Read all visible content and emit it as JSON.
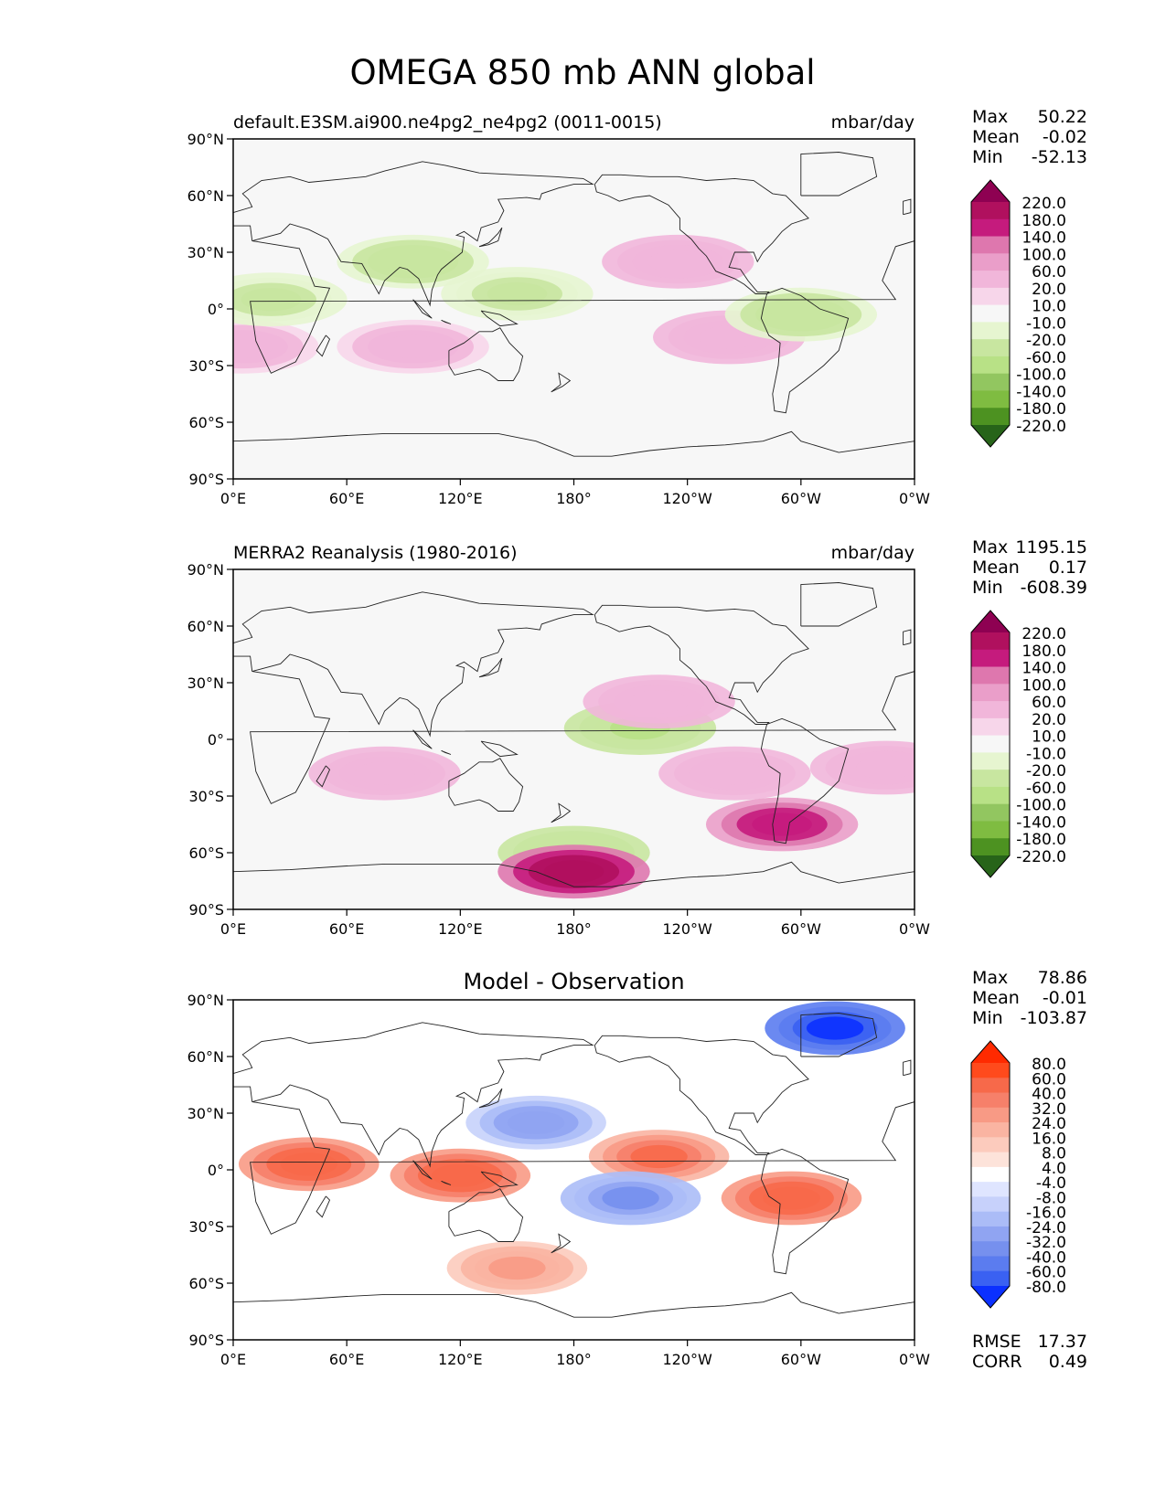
{
  "figure_title": "OMEGA 850 mb ANN global",
  "colors": {
    "background": "#f7f7f7",
    "coast": "#222222",
    "diff_low": "#0b30ff",
    "diff_high": "#ff2a00"
  },
  "chart_data": [
    {
      "type": "heatmap",
      "id": "model",
      "title": "default.E3SM.ai900.ne4pg2_ne4pg2 (0011-0015)",
      "units": "mbar/day",
      "stats": [
        {
          "label": "Max",
          "value": "50.22"
        },
        {
          "label": "Mean",
          "value": "-0.02"
        },
        {
          "label": "Min",
          "value": "-52.13"
        }
      ],
      "x_ticks": [
        "0°E",
        "60°E",
        "120°E",
        "180°",
        "120°W",
        "60°W",
        "0°W"
      ],
      "y_ticks": [
        "90°N",
        "60°N",
        "30°N",
        "0°",
        "30°S",
        "60°S",
        "90°S"
      ],
      "xlim": [
        0,
        360
      ],
      "ylim": [
        -90,
        90
      ],
      "colorbar": {
        "levels": [
          "220.0",
          "180.0",
          "140.0",
          "100.0",
          "60.0",
          "20.0",
          "10.0",
          "-10.0",
          "-20.0",
          "-60.0",
          "-100.0",
          "-140.0",
          "-180.0",
          "-220.0"
        ],
        "colors": [
          "#8e0152",
          "#b0105e",
          "#c51b7d",
          "#de77ae",
          "#ea9ec9",
          "#f1b6da",
          "#f7d6ea",
          "#f7f7f7",
          "#e6f5d0",
          "#c8e6a0",
          "#b8e186",
          "#92c660",
          "#7fbc41",
          "#4d9221",
          "#276419"
        ],
        "extend": "both"
      },
      "features": [
        {
          "name": "east-pacific-subsidence",
          "lon": 235,
          "lat": 25,
          "value": 45
        },
        {
          "name": "se-pacific-subsidence",
          "lon": 262,
          "lat": -15,
          "value": 45
        },
        {
          "name": "sw-indian-subsidence",
          "lon": 5,
          "lat": -20,
          "value": 30
        },
        {
          "name": "se-indian-subsidence",
          "lon": 95,
          "lat": -20,
          "value": 30
        },
        {
          "name": "warm-pool-ascent",
          "lon": 150,
          "lat": 8,
          "value": -25
        },
        {
          "name": "amazon-ascent",
          "lon": 300,
          "lat": -3,
          "value": -35
        },
        {
          "name": "africa-ascent",
          "lon": 20,
          "lat": 5,
          "value": -25
        },
        {
          "name": "himalaya-ascent",
          "lon": 95,
          "lat": 25,
          "value": -30
        }
      ]
    },
    {
      "type": "heatmap",
      "id": "obs",
      "title": "MERRA2 Reanalysis (1980-2016)",
      "units": "mbar/day",
      "stats": [
        {
          "label": "Max",
          "value": "1195.15"
        },
        {
          "label": "Mean",
          "value": "0.17"
        },
        {
          "label": "Min",
          "value": "-608.39"
        }
      ],
      "x_ticks": [
        "0°E",
        "60°E",
        "120°E",
        "180°",
        "120°W",
        "60°W",
        "0°W"
      ],
      "y_ticks": [
        "90°N",
        "60°N",
        "30°N",
        "0°",
        "30°S",
        "60°S",
        "90°S"
      ],
      "xlim": [
        0,
        360
      ],
      "ylim": [
        -90,
        90
      ],
      "colorbar": {
        "levels": [
          "220.0",
          "180.0",
          "140.0",
          "100.0",
          "60.0",
          "20.0",
          "10.0",
          "-10.0",
          "-20.0",
          "-60.0",
          "-100.0",
          "-140.0",
          "-180.0",
          "-220.0"
        ],
        "colors": [
          "#8e0152",
          "#b0105e",
          "#c51b7d",
          "#de77ae",
          "#ea9ec9",
          "#f1b6da",
          "#f7d6ea",
          "#f7f7f7",
          "#e6f5d0",
          "#c8e6a0",
          "#b8e186",
          "#92c660",
          "#7fbc41",
          "#4d9221",
          "#276419"
        ],
        "extend": "both"
      },
      "features": [
        {
          "name": "itcz-pacific",
          "lon": 215,
          "lat": 6,
          "value": -60
        },
        {
          "name": "east-pacific-subsidence",
          "lon": 225,
          "lat": 20,
          "value": 45
        },
        {
          "name": "se-pacific-subsidence",
          "lon": 265,
          "lat": -18,
          "value": 50
        },
        {
          "name": "s-atlantic-subsidence",
          "lon": 345,
          "lat": -15,
          "value": 45
        },
        {
          "name": "s-indian-subsidence",
          "lon": 80,
          "lat": -18,
          "value": 40
        },
        {
          "name": "southern-ocean-ascent",
          "lon": 180,
          "lat": -60,
          "value": -50
        },
        {
          "name": "antarctic-coast-descent",
          "lon": 180,
          "lat": -70,
          "value": 220
        },
        {
          "name": "andes-descent",
          "lon": 290,
          "lat": -45,
          "value": 180
        }
      ]
    },
    {
      "type": "heatmap",
      "id": "diff",
      "title": "Model - Observation",
      "units": "",
      "stats": [
        {
          "label": "Max",
          "value": "78.86"
        },
        {
          "label": "Mean",
          "value": "-0.01"
        },
        {
          "label": "Min",
          "value": "-103.87"
        }
      ],
      "x_ticks": [
        "0°E",
        "60°E",
        "120°E",
        "180°",
        "120°W",
        "60°W",
        "0°W"
      ],
      "y_ticks": [
        "90°N",
        "60°N",
        "30°N",
        "0°",
        "30°S",
        "60°S",
        "90°S"
      ],
      "xlim": [
        0,
        360
      ],
      "ylim": [
        -90,
        90
      ],
      "colorbar": {
        "levels": [
          "80.0",
          "60.0",
          "40.0",
          "32.0",
          "24.0",
          "16.0",
          "8.0",
          "4.0",
          "-4.0",
          "-8.0",
          "-16.0",
          "-24.0",
          "-32.0",
          "-40.0",
          "-60.0",
          "-80.0"
        ],
        "colors": [
          "#ff2a00",
          "#ff4a1c",
          "#f7694a",
          "#f6806a",
          "#f89a85",
          "#fab4a2",
          "#fccbbd",
          "#fde3da",
          "#ffffff",
          "#dfe5ff",
          "#c7d1fb",
          "#abbcf7",
          "#90a4f2",
          "#7690ee",
          "#5b7cef",
          "#3a61f2",
          "#0b30ff"
        ],
        "extend": "both"
      },
      "extra_stats": [
        {
          "label": "RMSE",
          "value": "17.37"
        },
        {
          "label": "CORR",
          "value": "0.49"
        }
      ],
      "features": [
        {
          "name": "equatorial-pacific-positive",
          "lon": 225,
          "lat": 7,
          "value": 45
        },
        {
          "name": "maritime-continent-positive",
          "lon": 120,
          "lat": -3,
          "value": 50
        },
        {
          "name": "east-africa-positive",
          "lon": 40,
          "lat": 3,
          "value": 55
        },
        {
          "name": "south-america-positive",
          "lon": 295,
          "lat": -15,
          "value": 50
        },
        {
          "name": "north-pacific-negative",
          "lon": 160,
          "lat": 25,
          "value": -30
        },
        {
          "name": "south-pacific-negative",
          "lon": 210,
          "lat": -15,
          "value": -35
        },
        {
          "name": "greenland-negative",
          "lon": 318,
          "lat": 75,
          "value": -80
        },
        {
          "name": "southern-ocean-positive",
          "lon": 150,
          "lat": -52,
          "value": 25
        }
      ]
    }
  ]
}
